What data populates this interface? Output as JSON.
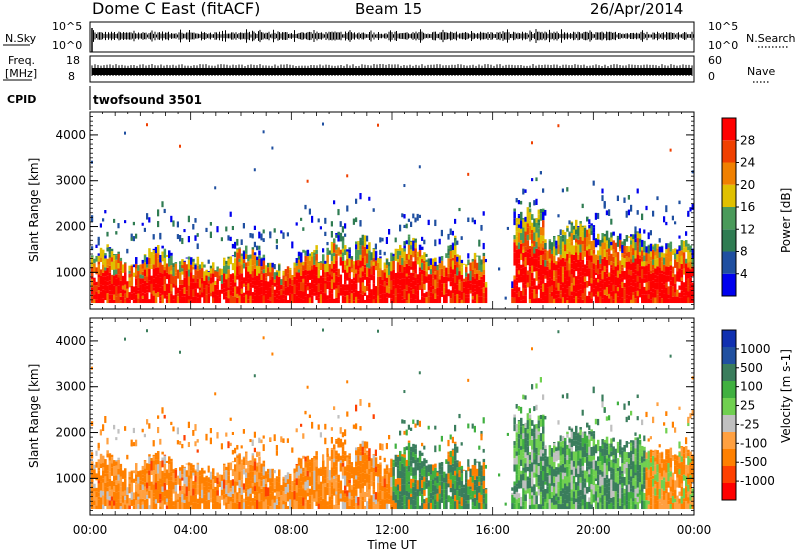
{
  "header": {
    "station": "Dome C East (fitACF)",
    "beam": "Beam 15",
    "date": "26/Apr/2014"
  },
  "aux_panels": {
    "nsky_label": "N.Sky",
    "nsky_ticks": [
      "10^5",
      "10^0"
    ],
    "nsearch_label": "N.Search",
    "freq_label_1": "Freq.",
    "freq_label_2": "[MHz]",
    "freq_ticks": [
      "18",
      "8"
    ],
    "nave_label": "Nave",
    "nave_ticks": [
      "60",
      "0"
    ],
    "cpid_label": "CPID",
    "cpid_value": "twofsound 3501"
  },
  "colors": {
    "power_scale": [
      "#0000ee",
      "#1f4fa0",
      "#2f7c52",
      "#4a9a5a",
      "#e0c000",
      "#f08000",
      "#f04000",
      "#ff0000"
    ],
    "velocity_scale": [
      "#ff0000",
      "#ff4000",
      "#ff8000",
      "#ffa040",
      "#c0c0c0",
      "#70d050",
      "#40b040",
      "#3a7d5c",
      "#2050a0",
      "#1030b0"
    ]
  },
  "chart_data": [
    {
      "type": "heatmap",
      "title": "",
      "xlabel": "",
      "ylabel": "Slant Range [km]",
      "x_range_hours": [
        0,
        24
      ],
      "ylim": [
        200,
        4500
      ],
      "y_ticks": [
        "1000",
        "2000",
        "3000",
        "4000"
      ],
      "colorbar_label": "Power [dB]",
      "colorbar_ticks": [
        "4",
        "8",
        "12",
        "16",
        "20",
        "24",
        "28"
      ],
      "colorbar_range": [
        0,
        32
      ],
      "series": [
        {
          "hours": [
            0,
            4,
            8,
            10,
            12,
            14,
            15,
            16,
            17,
            18,
            20,
            22,
            24
          ],
          "strong_echo_band_km": [
            [
              350,
              1500
            ],
            [
              350,
              1400
            ],
            [
              350,
              1400
            ],
            [
              350,
              1600
            ],
            [
              350,
              1500
            ],
            [
              350,
              1500
            ],
            [
              400,
              1400
            ],
            [
              400,
              900
            ],
            [
              500,
              2300
            ],
            [
              400,
              2000
            ],
            [
              400,
              1800
            ],
            [
              400,
              1700
            ],
            [
              400,
              1600
            ]
          ]
        }
      ]
    },
    {
      "type": "heatmap",
      "title": "",
      "xlabel": "Time UT",
      "ylabel": "Slant Range [km]",
      "x_ticks": [
        "00:00",
        "04:00",
        "08:00",
        "12:00",
        "16:00",
        "20:00",
        "00:00"
      ],
      "x_range_hours": [
        0,
        24
      ],
      "ylim": [
        200,
        4500
      ],
      "y_ticks": [
        "1000",
        "2000",
        "3000",
        "4000"
      ],
      "colorbar_label": "Velocity [m s-1]",
      "colorbar_ticks": [
        "-1000",
        "-500",
        "-100",
        "-25",
        "25",
        "100",
        "500",
        "1000"
      ],
      "dominant_velocity_by_time": [
        {
          "from": "00:00",
          "to": "12:00",
          "velocity": "-100 to -500"
        },
        {
          "from": "12:00",
          "to": "16:00",
          "velocity": "+100 to +500"
        },
        {
          "from": "17:00",
          "to": "22:00",
          "velocity": "+25 to +500"
        },
        {
          "from": "22:00",
          "to": "00:00",
          "velocity": "-100 to -500"
        }
      ]
    }
  ],
  "axis_title_units": "s",
  "axis_title_exp": "-1"
}
